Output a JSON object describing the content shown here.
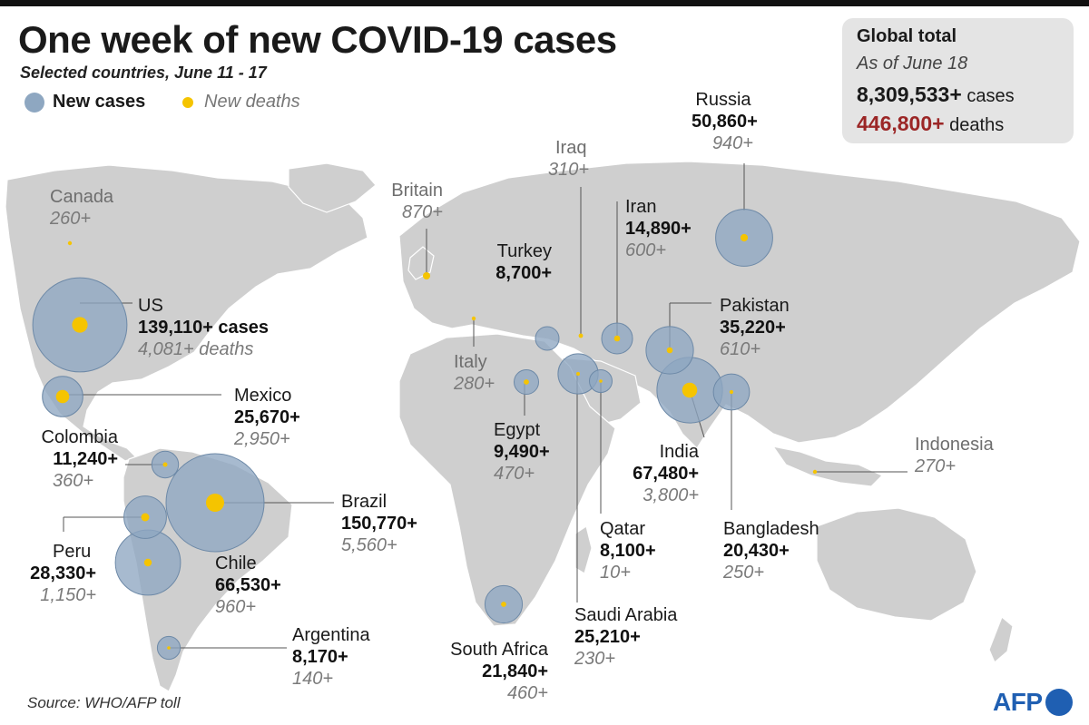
{
  "title": "One week of new COVID-19 cases",
  "subtitle": "Selected countries, June 11 - 17",
  "legend": {
    "cases": "New cases",
    "deaths": "New deaths"
  },
  "global": {
    "heading": "Global total",
    "as_of": "As of June 18",
    "cases_value": "8,309,533+",
    "cases_label": "cases",
    "deaths_value": "446,800+",
    "deaths_label": "deaths"
  },
  "countries": {
    "russia": {
      "name": "Russia",
      "cases": "50,860+",
      "deaths": "940+",
      "cases_n": 50860,
      "deaths_n": 940
    },
    "iraq": {
      "name": "Iraq",
      "deaths": "310+",
      "deaths_n": 310
    },
    "iran": {
      "name": "Iran",
      "cases": "14,890+",
      "deaths": "600+",
      "cases_n": 14890,
      "deaths_n": 600
    },
    "turkey": {
      "name": "Turkey",
      "cases": "8,700+",
      "cases_n": 8700
    },
    "pakistan": {
      "name": "Pakistan",
      "cases": "35,220+",
      "deaths": "610+",
      "cases_n": 35220,
      "deaths_n": 610
    },
    "britain": {
      "name": "Britain",
      "deaths": "870+",
      "deaths_n": 870
    },
    "canada": {
      "name": "Canada",
      "deaths": "260+",
      "deaths_n": 260
    },
    "us": {
      "name": "US",
      "cases": "139,110+ cases",
      "deaths": "4,081+ deaths",
      "cases_n": 139110,
      "deaths_n": 4081
    },
    "mexico": {
      "name": "Mexico",
      "cases": "25,670+",
      "deaths": "2,950+",
      "cases_n": 25670,
      "deaths_n": 2950
    },
    "colombia": {
      "name": "Colombia",
      "cases": "11,240+",
      "deaths": "360+",
      "cases_n": 11240,
      "deaths_n": 360
    },
    "brazil": {
      "name": "Brazil",
      "cases": "150,770+",
      "deaths": "5,560+",
      "cases_n": 150770,
      "deaths_n": 5560
    },
    "peru": {
      "name": "Peru",
      "cases": "28,330+",
      "deaths": "1,150+",
      "cases_n": 28330,
      "deaths_n": 1150
    },
    "chile": {
      "name": "Chile",
      "cases": "66,530+",
      "deaths": "960+",
      "cases_n": 66530,
      "deaths_n": 960
    },
    "argentina": {
      "name": "Argentina",
      "cases": "8,170+",
      "deaths": "140+",
      "cases_n": 8170,
      "deaths_n": 140
    },
    "italy": {
      "name": "Italy",
      "deaths": "280+",
      "deaths_n": 280
    },
    "egypt": {
      "name": "Egypt",
      "cases": "9,490+",
      "deaths": "470+",
      "cases_n": 9490,
      "deaths_n": 470
    },
    "india": {
      "name": "India",
      "cases": "67,480+",
      "deaths": "3,800+",
      "cases_n": 67480,
      "deaths_n": 3800
    },
    "indonesia": {
      "name": "Indonesia",
      "deaths": "270+",
      "deaths_n": 270
    },
    "qatar": {
      "name": "Qatar",
      "cases": "8,100+",
      "deaths": "10+",
      "cases_n": 8100,
      "deaths_n": 10
    },
    "bangladesh": {
      "name": "Bangladesh",
      "cases": "20,430+",
      "deaths": "250+",
      "cases_n": 20430,
      "deaths_n": 250
    },
    "saudi": {
      "name": "Saudi Arabia",
      "cases": "25,210+",
      "deaths": "230+",
      "cases_n": 25210,
      "deaths_n": 230
    },
    "southafrica": {
      "name": "South Africa",
      "cases": "21,840+",
      "deaths": "460+",
      "cases_n": 21840,
      "deaths_n": 460
    }
  },
  "colors": {
    "cases": "#8ea7c1",
    "deaths": "#f5c400",
    "land": "#cfcfcf",
    "global_deaths": "#9b2626",
    "brand": "#1f5fb2"
  },
  "source": "Source: WHO/AFP toll",
  "logo_text": "AFP"
}
